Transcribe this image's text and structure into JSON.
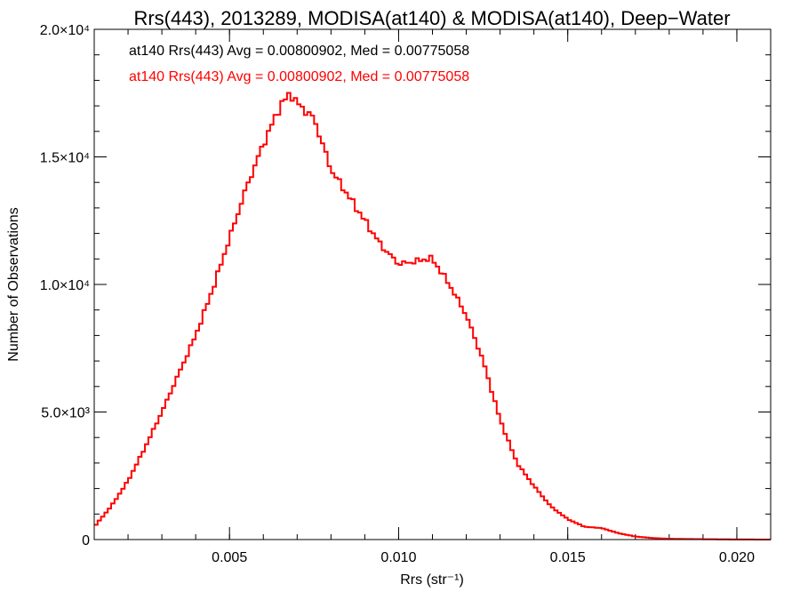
{
  "chart_data": {
    "type": "histogram",
    "title": "Rrs(443), 2013289, MODISA(at140) & MODISA(at140), Deep−Water",
    "xlabel": "Rrs (str⁻¹)",
    "ylabel": "Number of Observations",
    "xlim": [
      0.001,
      0.021
    ],
    "ylim": [
      0,
      20000
    ],
    "x_ticks": [
      {
        "value": 0.005,
        "label": "0.005"
      },
      {
        "value": 0.01,
        "label": "0.010"
      },
      {
        "value": 0.015,
        "label": "0.015"
      },
      {
        "value": 0.02,
        "label": "0.020"
      }
    ],
    "y_ticks": [
      {
        "value": 0,
        "label": "0"
      },
      {
        "value": 5000,
        "label": "5.0×10³"
      },
      {
        "value": 10000,
        "label": "1.0×10⁴"
      },
      {
        "value": 15000,
        "label": "1.5×10⁴"
      },
      {
        "value": 20000,
        "label": "2.0×10⁴"
      }
    ],
    "x_minor_step": 0.001,
    "y_minor_step": 1000,
    "legend": [
      {
        "text": "at140 Rrs(443) Avg = 0.00800902, Med = 0.00775058",
        "color": "#000000"
      },
      {
        "text": "at140 Rrs(443) Avg = 0.00800902, Med = 0.00775058",
        "color": "#ff0000"
      }
    ],
    "series": [
      {
        "color": "#ff0000",
        "points": [
          [
            0.001,
            500
          ],
          [
            0.0015,
            1300
          ],
          [
            0.002,
            2300
          ],
          [
            0.0025,
            3600
          ],
          [
            0.003,
            5000
          ],
          [
            0.0035,
            6500
          ],
          [
            0.004,
            8000
          ],
          [
            0.0045,
            9800
          ],
          [
            0.005,
            11800
          ],
          [
            0.0055,
            13800
          ],
          [
            0.006,
            15500
          ],
          [
            0.0065,
            17000
          ],
          [
            0.0068,
            17500
          ],
          [
            0.007,
            17100
          ],
          [
            0.0075,
            16500
          ],
          [
            0.008,
            14500
          ],
          [
            0.0085,
            13500
          ],
          [
            0.009,
            12500
          ],
          [
            0.0095,
            11500
          ],
          [
            0.01,
            10800
          ],
          [
            0.0105,
            10900
          ],
          [
            0.0108,
            11000
          ],
          [
            0.011,
            11000
          ],
          [
            0.0115,
            10000
          ],
          [
            0.012,
            8800
          ],
          [
            0.0125,
            7000
          ],
          [
            0.013,
            4700
          ],
          [
            0.0135,
            3000
          ],
          [
            0.014,
            2100
          ],
          [
            0.0145,
            1300
          ],
          [
            0.015,
            800
          ],
          [
            0.0155,
            500
          ],
          [
            0.016,
            450
          ],
          [
            0.0165,
            250
          ],
          [
            0.017,
            120
          ],
          [
            0.0175,
            60
          ],
          [
            0.018,
            30
          ],
          [
            0.019,
            15
          ],
          [
            0.02,
            5
          ],
          [
            0.021,
            0
          ]
        ]
      }
    ]
  }
}
